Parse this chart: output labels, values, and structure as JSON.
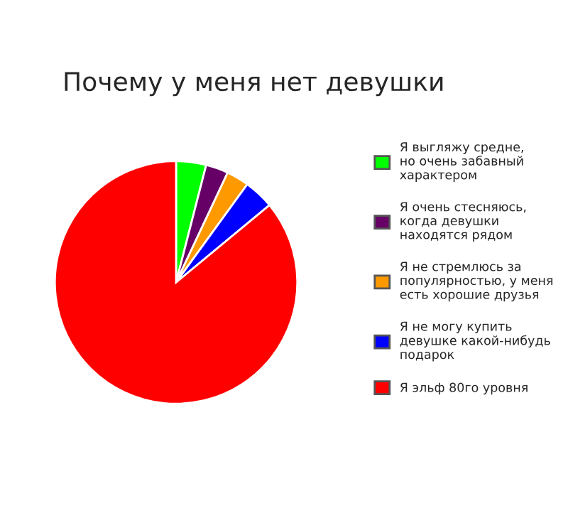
{
  "chart_data": {
    "type": "pie",
    "title": "Почему у меня нет девушки",
    "categories": [
      "Я выгляжу средне,\nно очень забавный\nхарактером",
      "Я очень стесняюсь,\nкогда девушки\nнаходятся рядом",
      "Я не стремлюсь за\nпопулярностью, у меня\nесть хорошие друзья",
      "Я не могу купить\nдевушке какой-нибудь\nподарок",
      "Я эльф 80го уровня"
    ],
    "values": [
      4,
      3,
      3,
      4,
      86
    ],
    "colors": [
      "#00ff00",
      "#660066",
      "#ff9900",
      "#0000ff",
      "#ff0000"
    ],
    "legend": "right"
  }
}
